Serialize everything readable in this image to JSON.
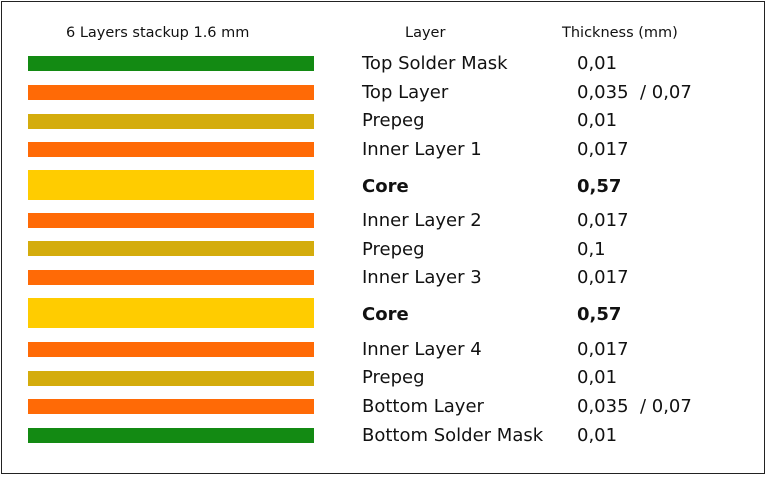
{
  "headers": {
    "title": "6 Layers stackup 1.6 mm",
    "layer": "Layer",
    "thickness": "Thickness (mm)"
  },
  "colors": {
    "mask": "#138a13",
    "copper": "#ff6a06",
    "prepreg": "#d4ac0d",
    "core": "#ffcc00"
  },
  "layers": [
    {
      "name": "Top Solder Mask",
      "thickness": "0,01",
      "type": "mask",
      "bold": false
    },
    {
      "name": "Top Layer",
      "thickness": "0,035  / 0,07",
      "type": "copper",
      "bold": false
    },
    {
      "name": "Prepeg",
      "thickness": "0,01",
      "type": "prepreg",
      "bold": false
    },
    {
      "name": "Inner Layer 1",
      "thickness": "0,017",
      "type": "copper",
      "bold": false
    },
    {
      "name": "Core",
      "thickness": "0,57",
      "type": "core",
      "bold": true
    },
    {
      "name": "Inner Layer 2",
      "thickness": "0,017",
      "type": "copper",
      "bold": false
    },
    {
      "name": "Prepeg",
      "thickness": "0,1",
      "type": "prepreg",
      "bold": false
    },
    {
      "name": "Inner Layer 3",
      "thickness": "0,017",
      "type": "copper",
      "bold": false
    },
    {
      "name": "Core",
      "thickness": "0,57",
      "type": "core",
      "bold": true
    },
    {
      "name": "Inner Layer 4",
      "thickness": "0,017",
      "type": "copper",
      "bold": false
    },
    {
      "name": "Prepeg",
      "thickness": "0,01",
      "type": "prepreg",
      "bold": false
    },
    {
      "name": "Bottom Layer",
      "thickness": "0,035  / 0,07",
      "type": "copper",
      "bold": false
    },
    {
      "name": "Bottom Solder Mask",
      "thickness": "0,01",
      "type": "mask",
      "bold": false
    }
  ]
}
